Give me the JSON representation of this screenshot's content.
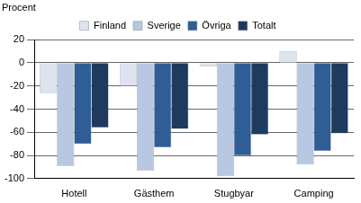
{
  "chart_data": {
    "type": "bar",
    "y_label": "Procent",
    "categories": [
      "Hotell",
      "Gästhem",
      "Stugbyar",
      "Camping"
    ],
    "series": [
      {
        "name": "Finland",
        "color": "#dde4f0",
        "values": [
          -26,
          -20,
          -3,
          10
        ]
      },
      {
        "name": "Sverige",
        "color": "#b9c8e2",
        "values": [
          -89,
          -93,
          -98,
          -88
        ]
      },
      {
        "name": "Övriga",
        "color": "#2f5d95",
        "values": [
          -70,
          -73,
          -80,
          -76
        ]
      },
      {
        "name": "Totalt",
        "color": "#1e3a5f",
        "values": [
          -56,
          -57,
          -62,
          -61
        ]
      }
    ],
    "ylim": [
      -100,
      20
    ],
    "yticks": [
      -100,
      -80,
      -60,
      -40,
      -20,
      0,
      20
    ],
    "grid": true,
    "legend": "top"
  }
}
